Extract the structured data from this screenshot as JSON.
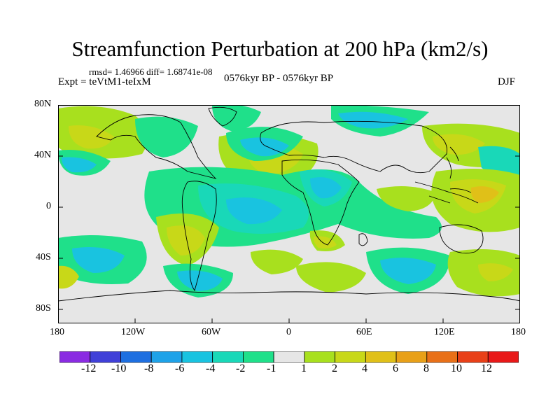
{
  "title": "Streamfunction Perturbation at 200 hPa (km2/s)",
  "stats": "rmsd= 1.46966 diff= 1.68741e-08",
  "experiment": "Expt = teVtM1-teIxM",
  "period": "0576kyr BP - 0576kyr BP",
  "season": "DJF",
  "axes": {
    "lat_labels": [
      "80N",
      "40N",
      "0",
      "40S",
      "80S"
    ],
    "lon_labels": [
      "180",
      "120W",
      "60W",
      "0",
      "60E",
      "120E",
      "180"
    ]
  },
  "colorbar": {
    "labels": [
      "-12",
      "-10",
      "-8",
      "-6",
      "-4",
      "-2",
      "-1",
      "1",
      "2",
      "4",
      "6",
      "8",
      "10",
      "12"
    ],
    "colors": [
      "#8a2be2",
      "#4040d8",
      "#1e6fe0",
      "#1ea2e8",
      "#19c3e0",
      "#19d8b8",
      "#1fe08a",
      "#e6e6e6",
      "#a8e01e",
      "#c8d818",
      "#e0c018",
      "#e8a018",
      "#e87018",
      "#e84018",
      "#e81818"
    ]
  },
  "colors": {
    "background": "#e6e6e6",
    "coast": "#000000"
  }
}
